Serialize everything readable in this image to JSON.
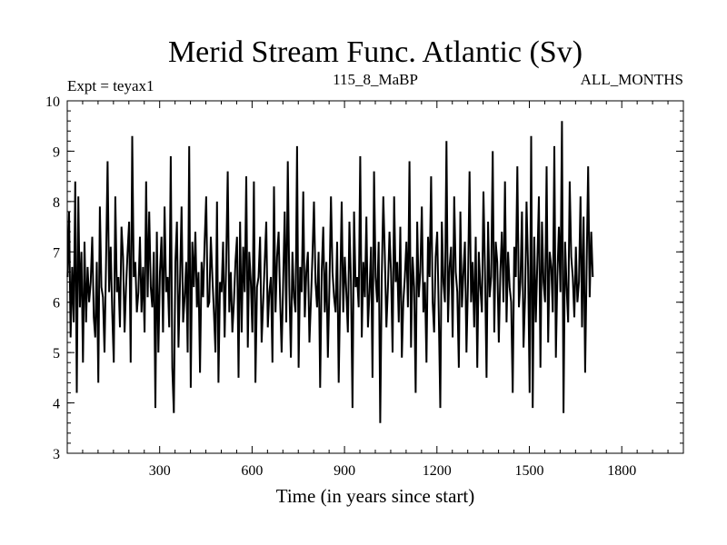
{
  "chart_data": {
    "type": "line",
    "title": "Merid Stream Func. Atlantic (Sv)",
    "subtitle_left": "Expt = teyax1",
    "subtitle_center": "115_8_MaBP",
    "subtitle_right": "ALL_MONTHS",
    "xlabel": "Time (in years since start)",
    "ylabel": "",
    "xlim": [
      0,
      2000
    ],
    "ylim": [
      3,
      10
    ],
    "x_ticks": [
      300,
      600,
      900,
      1200,
      1500,
      1800
    ],
    "y_ticks": [
      3,
      4,
      5,
      6,
      7,
      8,
      9,
      10
    ],
    "grid": false,
    "line_color": "#000000",
    "series": [
      {
        "x_start": 1,
        "x_step": 5,
        "values": [
          6.5,
          7.8,
          5.3,
          6.7,
          5.6,
          8.4,
          4.2,
          8.1,
          5.9,
          7.0,
          4.8,
          7.2,
          5.6,
          6.7,
          6.0,
          6.4,
          7.3,
          5.7,
          5.3,
          6.8,
          4.4,
          7.9,
          6.3,
          6.1,
          5.0,
          6.8,
          8.8,
          6.2,
          7.1,
          5.8,
          4.8,
          8.1,
          6.2,
          6.5,
          5.5,
          7.5,
          6.9,
          5.4,
          6.3,
          7.0,
          7.6,
          4.8,
          9.3,
          6.5,
          6.8,
          5.8,
          6.2,
          7.3,
          5.8,
          6.7,
          5.4,
          8.4,
          6.1,
          7.8,
          6.3,
          5.9,
          7.0,
          3.9,
          7.4,
          5.0,
          6.6,
          7.3,
          5.4,
          7.9,
          6.2,
          6.5,
          5.5,
          8.9,
          4.7,
          3.8,
          6.8,
          7.6,
          5.1,
          6.4,
          7.9,
          5.6,
          6.1,
          6.8,
          5.0,
          9.1,
          4.3,
          7.2,
          6.3,
          7.4,
          5.9,
          6.6,
          4.6,
          6.8,
          6.1,
          7.2,
          8.1,
          5.9,
          6.0,
          7.3,
          6.5,
          5.8,
          5.0,
          8.0,
          4.4,
          6.4,
          6.2,
          7.2,
          5.3,
          6.8,
          8.6,
          5.8,
          6.6,
          5.4,
          6.0,
          6.8,
          7.3,
          4.5,
          7.6,
          5.4,
          7.1,
          6.2,
          8.5,
          5.1,
          7.0,
          6.4,
          5.4,
          8.4,
          4.4,
          6.3,
          6.5,
          7.3,
          5.2,
          6.0,
          6.8,
          7.6,
          5.5,
          6.2,
          6.5,
          4.8,
          8.3,
          5.8,
          6.9,
          7.4,
          6.1,
          5.0,
          6.4,
          7.8,
          5.6,
          8.8,
          6.3,
          4.9,
          7.0,
          6.1,
          5.8,
          9.1,
          4.7,
          6.7,
          6.2,
          8.2,
          5.7,
          6.6,
          7.0,
          5.2,
          6.0,
          6.9,
          8.0,
          6.4,
          5.9,
          7.0,
          4.3,
          6.6,
          7.5,
          5.8,
          6.8,
          4.9,
          6.3,
          8.1,
          6.6,
          6.1,
          5.8,
          7.2,
          4.4,
          6.3,
          8.0,
          5.8,
          6.9,
          6.2,
          5.4,
          7.6,
          6.4,
          3.9,
          7.8,
          6.3,
          6.5,
          5.9,
          8.9,
          5.3,
          6.8,
          6.1,
          7.7,
          5.5,
          6.2,
          7.1,
          4.5,
          8.6,
          6.5,
          6.0,
          7.2,
          3.6,
          6.5,
          8.1,
          6.9,
          5.5,
          6.3,
          7.4,
          6.6,
          5.0,
          8.1,
          6.4,
          6.8,
          5.6,
          7.5,
          4.9,
          6.0,
          6.5,
          7.2,
          5.9,
          8.8,
          5.1,
          6.9,
          6.3,
          4.2,
          7.6,
          6.1,
          6.6,
          7.9,
          5.8,
          6.4,
          4.8,
          7.3,
          6.5,
          8.5,
          6.0,
          5.4,
          6.9,
          7.4,
          5.8,
          3.9,
          7.6,
          6.4,
          6.0,
          9.2,
          5.6,
          6.7,
          7.1,
          5.3,
          8.1,
          6.6,
          6.2,
          4.7,
          7.8,
          5.9,
          6.6,
          7.2,
          5.0,
          6.4,
          8.6,
          6.0,
          6.8,
          5.5,
          7.3,
          4.7,
          7.0,
          6.3,
          5.8,
          8.2,
          6.6,
          4.5,
          7.6,
          6.1,
          6.5,
          9.0,
          5.4,
          7.2,
          6.8,
          5.2,
          6.6,
          7.4,
          6.0,
          8.4,
          5.6,
          7.0,
          6.3,
          6.0,
          4.2,
          7.1,
          6.5,
          8.7,
          5.9,
          6.4,
          7.8,
          5.1,
          6.1,
          8.0,
          6.7,
          4.2,
          9.3,
          3.9,
          7.3,
          5.6,
          6.8,
          8.1,
          4.7,
          7.6,
          6.4,
          6.0,
          8.7,
          5.2,
          7.0,
          6.7,
          5.8,
          9.1,
          4.9,
          6.5,
          7.5,
          6.2,
          9.6,
          3.8,
          7.2,
          6.3,
          5.6,
          8.4,
          6.9,
          6.5,
          5.7,
          7.1,
          6.0,
          6.4,
          8.1,
          5.5,
          7.7,
          4.6,
          6.8,
          8.7,
          6.1,
          7.4,
          6.5
        ]
      }
    ]
  }
}
